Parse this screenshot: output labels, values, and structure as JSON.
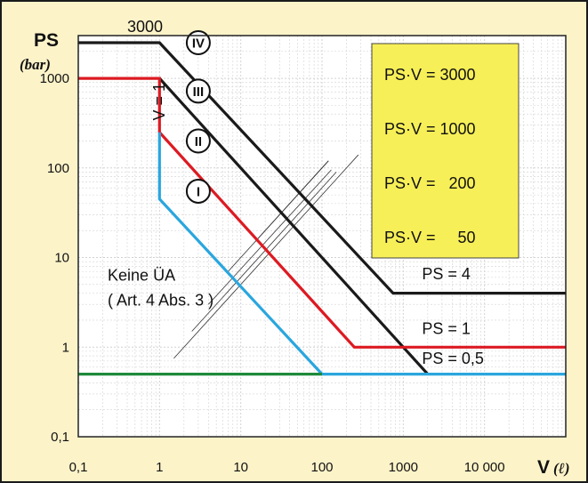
{
  "chart_data": {
    "type": "line",
    "x_scale": "log",
    "y_scale": "log",
    "xlim": [
      0.1,
      100000
    ],
    "ylim": [
      0.1,
      3000
    ],
    "grid": true,
    "x_axis_title": "V",
    "x_axis_unit": "(ℓ)",
    "y_axis_title": "PS",
    "y_axis_unit": "(bar)",
    "x_ticks": [
      {
        "value": 0.1,
        "label": "0,1"
      },
      {
        "value": 1,
        "label": "1"
      },
      {
        "value": 10,
        "label": "10"
      },
      {
        "value": 100,
        "label": "100"
      },
      {
        "value": 1000,
        "label": "1000"
      },
      {
        "value": 10000,
        "label": "10 000"
      }
    ],
    "y_ticks": [
      {
        "value": 0.1,
        "label": "0,1"
      },
      {
        "value": 1,
        "label": "1"
      },
      {
        "value": 10,
        "label": "10"
      },
      {
        "value": 100,
        "label": "100"
      },
      {
        "value": 1000,
        "label": "1000"
      }
    ],
    "series": [
      {
        "color": "#1a1a1a",
        "x": [
          0.1,
          1,
          750,
          100000
        ],
        "y": [
          2500,
          2500,
          4,
          4
        ]
      },
      {
        "color": "#1a1a1a",
        "x": [
          1,
          2000
        ],
        "y": [
          1000,
          0.5
        ]
      },
      {
        "color": "#dd1a22",
        "x": [
          0.1,
          1,
          1,
          250,
          100000
        ],
        "y": [
          1000,
          1000,
          250,
          1,
          1
        ]
      },
      {
        "color": "#2aa6de",
        "x": [
          1,
          1,
          100,
          100000
        ],
        "y": [
          250,
          45,
          0.5,
          0.5
        ]
      },
      {
        "color": "#1f8a3a",
        "x": [
          0.1,
          100
        ],
        "y": [
          0.5,
          0.5
        ]
      }
    ],
    "guide_lines": [
      {
        "x": [
          1.5,
          280
        ],
        "y": [
          0.75,
          140
        ]
      },
      {
        "x": [
          2.5,
          150
        ],
        "y": [
          1.5,
          90
        ]
      },
      {
        "x": [
          4,
          130
        ],
        "y": [
          3,
          95
        ]
      },
      {
        "x": [
          7,
          120
        ],
        "y": [
          7,
          120
        ]
      },
      {
        "x": [
          15,
          120
        ],
        "y": [
          15,
          120
        ]
      }
    ],
    "category_markers": [
      {
        "label": "IV",
        "x": 3.0,
        "y": 2500
      },
      {
        "label": "III",
        "x": 3.0,
        "y": 720
      },
      {
        "label": "II",
        "x": 3.0,
        "y": 200
      },
      {
        "label": "I",
        "x": 3.0,
        "y": 55
      }
    ],
    "annotations": [
      {
        "text": "3000",
        "x": 0.4,
        "y": 3300
      },
      {
        "text": "V = 1",
        "x": 1.15,
        "y": 550,
        "rotate": -90
      },
      {
        "text": "Keine ÜA",
        "x": 0.23,
        "y": 5.5
      },
      {
        "text": "( Art. 4 Abs. 3 )",
        "x": 0.23,
        "y": 2.9
      },
      {
        "text": "PS = 4",
        "x": 1700,
        "y": 5.7
      },
      {
        "text": "PS = 1",
        "x": 1700,
        "y": 1.4
      },
      {
        "text": "PS = 0,5",
        "x": 1700,
        "y": 0.65
      }
    ],
    "legend_box": {
      "position": "top-right",
      "background": "#f7ef57",
      "items": [
        "PS·V = 3000",
        "PS·V = 1000",
        "PS·V =   200",
        "PS·V =     50"
      ]
    },
    "colors": {
      "plot_background": "#ffffff",
      "frame_background": "#fdf3c9",
      "black_line": "#1a1a1a",
      "red_line": "#dd1a22",
      "blue_line": "#2aa6de",
      "green_line": "#1f8a3a",
      "grid": "#d2d2d2",
      "legend_fill": "#f7ef57"
    }
  }
}
